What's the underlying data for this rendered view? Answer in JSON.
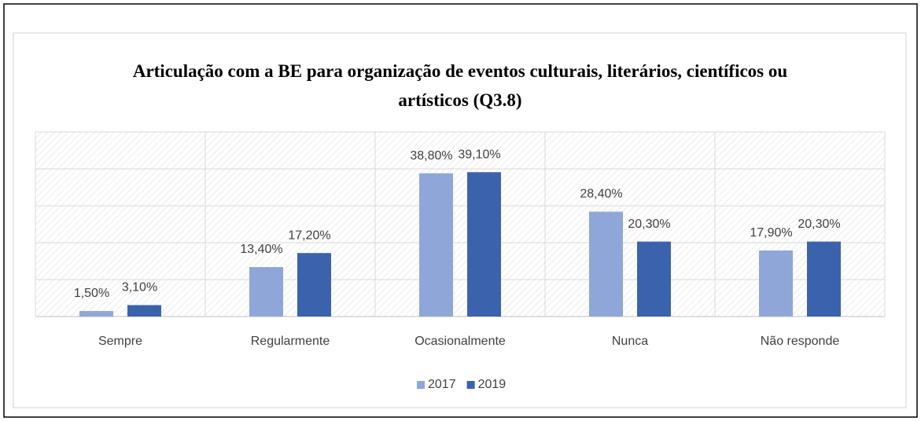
{
  "chart_data": {
    "type": "bar",
    "title": "Articulação com a BE para organização de eventos culturais, literários, científicos ou artísticos (Q3.8)",
    "categories": [
      "Sempre",
      "Regularmente",
      "Ocasionalmente",
      "Nunca",
      "Não responde"
    ],
    "series": [
      {
        "name": "2017",
        "color": "#8fa6d8",
        "values": [
          1.5,
          13.4,
          38.8,
          28.4,
          17.9
        ],
        "value_labels": [
          "1,50%",
          "13,40%",
          "38,80%",
          "28,40%",
          "17,90%"
        ]
      },
      {
        "name": "2019",
        "color": "#3b63ad",
        "values": [
          3.1,
          17.2,
          39.1,
          20.3,
          20.3
        ],
        "value_labels": [
          "3,10%",
          "17,20%",
          "39,10%",
          "20,30%",
          "20,30%"
        ]
      }
    ],
    "ylim": [
      0,
      50
    ],
    "yticks": [
      0,
      10,
      20,
      30,
      40,
      50
    ],
    "grid": true,
    "legend": "bottom"
  }
}
